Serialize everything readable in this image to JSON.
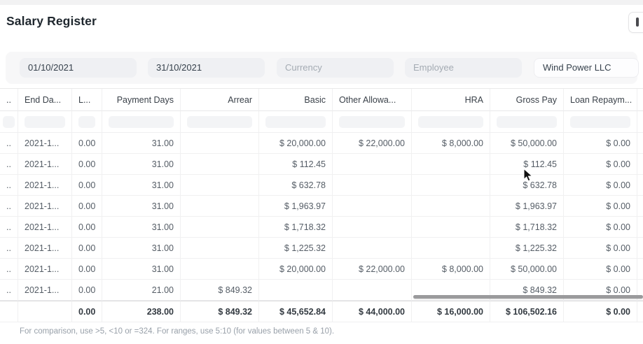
{
  "title": "Salary Register",
  "toolbar": {
    "overflow_button": "more"
  },
  "filters": {
    "from_date": {
      "value": "01/10/2021"
    },
    "to_date": {
      "value": "31/10/2021"
    },
    "currency": {
      "placeholder": "Currency"
    },
    "employee": {
      "placeholder": "Employee"
    },
    "company": {
      "value": "Wind Power LLC"
    }
  },
  "table": {
    "columns": [
      {
        "id": "sel",
        "label": "..",
        "align": "left"
      },
      {
        "id": "end_date",
        "label": "End Da...",
        "align": "left"
      },
      {
        "id": "leave",
        "label": "L...",
        "align": "left"
      },
      {
        "id": "payment_days",
        "label": "Payment Days",
        "align": "right"
      },
      {
        "id": "arrear",
        "label": "Arrear",
        "align": "right"
      },
      {
        "id": "basic",
        "label": "Basic",
        "align": "right"
      },
      {
        "id": "other_allowances",
        "label": "Other Allowa...",
        "align": "right",
        "header_align": "left"
      },
      {
        "id": "hra",
        "label": "HRA",
        "align": "right"
      },
      {
        "id": "gross_pay",
        "label": "Gross Pay",
        "align": "right"
      },
      {
        "id": "loan_repayment",
        "label": "Loan Repaym...",
        "align": "right",
        "header_align": "left"
      },
      {
        "id": "spacer",
        "label": "",
        "align": "left"
      }
    ],
    "rows": [
      [
        "..",
        "2021-1...",
        "0.00",
        "31.00",
        "",
        "$ 20,000.00",
        "$ 22,000.00",
        "$ 8,000.00",
        "$ 50,000.00",
        "$ 0.00",
        ""
      ],
      [
        "..",
        "2021-1...",
        "0.00",
        "31.00",
        "",
        "$ 112.45",
        "",
        "",
        "$ 112.45",
        "$ 0.00",
        ""
      ],
      [
        "..",
        "2021-1...",
        "0.00",
        "31.00",
        "",
        "$ 632.78",
        "",
        "",
        "$ 632.78",
        "$ 0.00",
        ""
      ],
      [
        "..",
        "2021-1...",
        "0.00",
        "31.00",
        "",
        "$ 1,963.97",
        "",
        "",
        "$ 1,963.97",
        "$ 0.00",
        ""
      ],
      [
        "..",
        "2021-1...",
        "0.00",
        "31.00",
        "",
        "$ 1,718.32",
        "",
        "",
        "$ 1,718.32",
        "$ 0.00",
        ""
      ],
      [
        "..",
        "2021-1...",
        "0.00",
        "31.00",
        "",
        "$ 1,225.32",
        "",
        "",
        "$ 1,225.32",
        "$ 0.00",
        ""
      ],
      [
        "..",
        "2021-1...",
        "0.00",
        "31.00",
        "",
        "$ 20,000.00",
        "$ 22,000.00",
        "$ 8,000.00",
        "$ 50,000.00",
        "$ 0.00",
        ""
      ],
      [
        "..",
        "2021-1...",
        "0.00",
        "21.00",
        "$ 849.32",
        "",
        "",
        "",
        "$ 849.32",
        "$ 0.00",
        ""
      ]
    ],
    "total": [
      "",
      "",
      "0.00",
      "238.00",
      "$ 849.32",
      "$ 45,652.84",
      "$ 44,000.00",
      "$ 16,000.00",
      "$ 106,502.16",
      "$ 0.00",
      ""
    ]
  },
  "hint": "For comparison, use >5, <10 or =324. For ranges, use 5:10 (for values between 5 & 10).",
  "colors": {
    "filter_bar_bg": "#f7f7f8",
    "pill_bg": "#eff0f3",
    "grid_line": "#f0f0f1",
    "scroll_thumb": "#9a9a9c"
  }
}
